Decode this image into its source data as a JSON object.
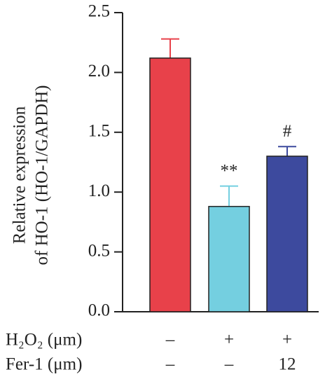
{
  "chart_data": {
    "type": "bar",
    "ylabel": [
      "Relative expression",
      "of HO-1 (HO-1/GAPDH)"
    ],
    "categories": [
      null,
      null,
      null
    ],
    "values": [
      2.12,
      0.88,
      1.3
    ],
    "errors": [
      0.16,
      0.17,
      0.08
    ],
    "colors": [
      "#e8414a",
      "#74cfe0",
      "#3d4a9e"
    ],
    "annotations": [
      null,
      "**",
      "#"
    ],
    "treatments": [
      {
        "name": "H₂O₂ (μm)",
        "values": [
          "–",
          "+",
          "+"
        ]
      },
      {
        "name": "Fer-1 (μm)",
        "values": [
          "–",
          "–",
          "12"
        ]
      }
    ],
    "ylim": [
      0,
      2.5
    ],
    "yticks": [
      {
        "value": 0,
        "label": "0.0"
      },
      0.5,
      {
        "value": 1,
        "label": "1.0"
      },
      1.5,
      {
        "value": 2,
        "label": "2.0"
      },
      2.5
    ]
  }
}
